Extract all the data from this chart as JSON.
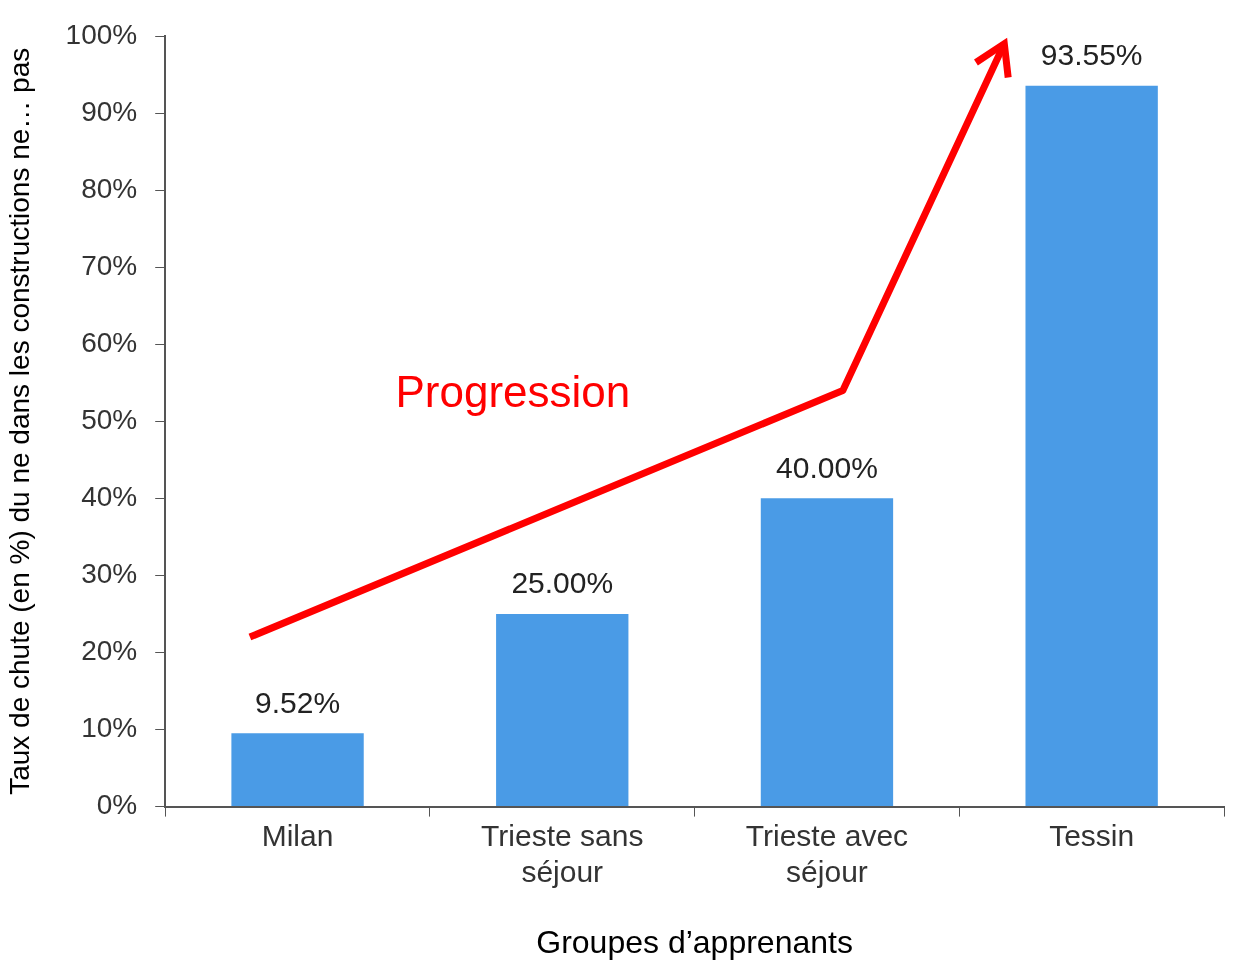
{
  "chart_data": {
    "type": "bar",
    "xlabel": "Groupes d’apprenants",
    "ylabel": "Taux de chute (en %) du ne dans les constructions ne… pas",
    "categories": [
      "Milan",
      "Trieste sans séjour",
      "Trieste avec séjour",
      "Tessin"
    ],
    "values": [
      9.52,
      25.0,
      40.0,
      93.55
    ],
    "color": "#4a9be6",
    "value_labels": [
      "9.52%",
      "25.00%",
      "40.00%",
      "93.55%"
    ],
    "ylim": [
      0,
      100
    ],
    "yticks": [
      {
        "value": 0,
        "label": "0%"
      },
      {
        "value": 10,
        "label": "10%"
      },
      {
        "value": 20,
        "label": "20%"
      },
      {
        "value": 30,
        "label": "30%"
      },
      {
        "value": 40,
        "label": "40%"
      },
      {
        "value": 50,
        "label": "50%"
      },
      {
        "value": 60,
        "label": "60%"
      },
      {
        "value": 70,
        "label": "70%"
      },
      {
        "value": 80,
        "label": "80%"
      },
      {
        "value": 90,
        "label": "90%"
      },
      {
        "value": 100,
        "label": "100%"
      }
    ],
    "grid": false,
    "legend": false,
    "annotations": [
      "Progression"
    ]
  }
}
